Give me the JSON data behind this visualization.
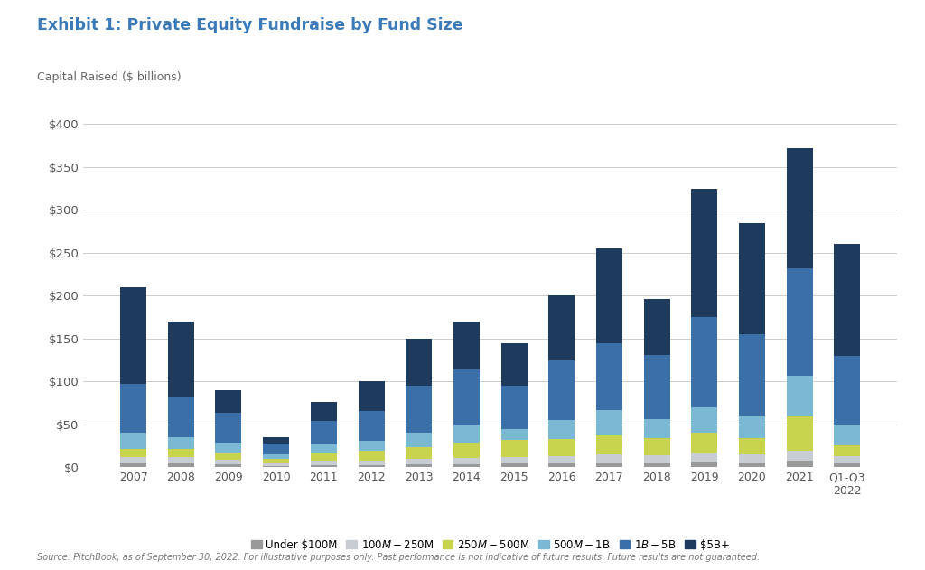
{
  "title": "Exhibit 1: Private Equity Fundraise by Fund Size",
  "ylabel": "Capital Raised ($ billions)",
  "source": "Source: PitchBook, as of September 30, 2022. For illustrative purposes only. Past performance is not indicative of future results. Future results are not guaranteed.",
  "years": [
    "2007",
    "2008",
    "2009",
    "2010",
    "2011",
    "2012",
    "2013",
    "2014",
    "2015",
    "2016",
    "2017",
    "2018",
    "2019",
    "2020",
    "2021",
    "Q1-Q3\n2022"
  ],
  "categories": [
    "Under $100M",
    "$100M-$250M",
    "$250M-$500M",
    "$500M-$1B",
    "$1B-$5B",
    "$5B+"
  ],
  "colors": [
    "#999999",
    "#c8cdd4",
    "#c8d44e",
    "#7ab8d4",
    "#3a6fa8",
    "#1e3a5c"
  ],
  "data": {
    "Under $100M": [
      5,
      5,
      4,
      2,
      3,
      3,
      4,
      4,
      5,
      5,
      6,
      6,
      7,
      6,
      8,
      5
    ],
    "$100M-$250M": [
      7,
      7,
      5,
      3,
      5,
      5,
      6,
      7,
      7,
      8,
      9,
      8,
      10,
      9,
      11,
      8
    ],
    "$250M-$500M": [
      10,
      9,
      8,
      5,
      8,
      11,
      14,
      18,
      20,
      20,
      22,
      20,
      23,
      19,
      40,
      13
    ],
    "$500M-$1B": [
      18,
      14,
      12,
      5,
      11,
      12,
      16,
      20,
      13,
      22,
      30,
      22,
      30,
      26,
      48,
      24
    ],
    "$1B-$5B": [
      57,
      47,
      35,
      13,
      27,
      35,
      55,
      65,
      50,
      70,
      78,
      75,
      105,
      95,
      125,
      80
    ],
    "$5B+": [
      113,
      88,
      26,
      7,
      22,
      34,
      55,
      56,
      50,
      75,
      110,
      65,
      150,
      130,
      140,
      130
    ]
  },
  "ylim": [
    0,
    425
  ],
  "yticks": [
    0,
    50,
    100,
    150,
    200,
    250,
    300,
    350,
    400
  ],
  "background_color": "#ffffff",
  "title_color": "#3a7ab8",
  "grid_color": "#cccccc",
  "legend_colors": [
    "#999999",
    "#c8cdd4",
    "#c8d44e",
    "#7ab8d4",
    "#3a6fa8",
    "#1e3a5c"
  ]
}
